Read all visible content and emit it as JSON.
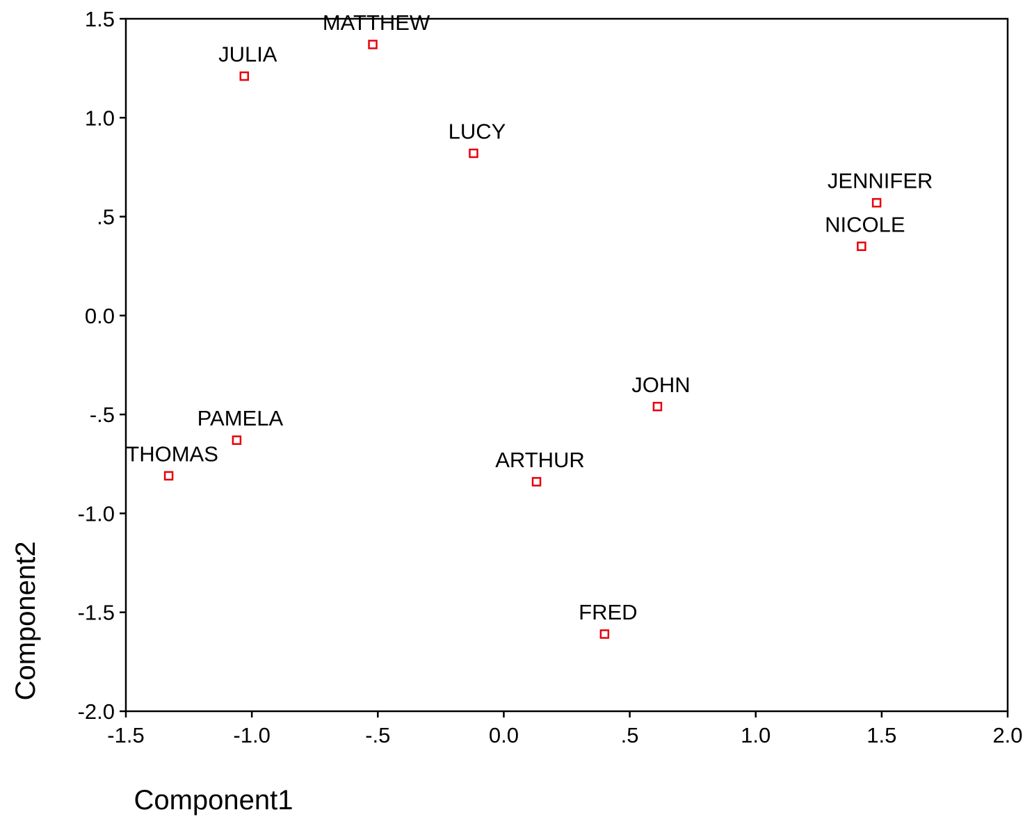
{
  "chart_data": {
    "type": "scatter",
    "title": "",
    "xlabel": "Component1",
    "ylabel": "Component2",
    "xlim": [
      -1.5,
      2.0
    ],
    "ylim": [
      -2.0,
      1.5
    ],
    "x_ticks": [
      -1.5,
      -1.0,
      -0.5,
      0.0,
      0.5,
      1.0,
      1.5,
      2.0
    ],
    "x_tick_labels": [
      "-1.5",
      "-1.0",
      "-.5",
      "0.0",
      ".5",
      "1.0",
      "1.5",
      "2.0"
    ],
    "y_ticks": [
      1.5,
      1.0,
      0.5,
      0.0,
      -0.5,
      -1.0,
      -1.5,
      -2.0
    ],
    "y_tick_labels": [
      "1.5",
      "1.0",
      ".5",
      "0.0",
      "-.5",
      "-1.0",
      "-1.5",
      "-2.0"
    ],
    "grid": false,
    "marker": "hollow-square",
    "marker_color": "#e8000b",
    "points": [
      {
        "label": "MATTHEW",
        "x": -0.52,
        "y": 1.37
      },
      {
        "label": "JULIA",
        "x": -1.03,
        "y": 1.21
      },
      {
        "label": "LUCY",
        "x": -0.12,
        "y": 0.82
      },
      {
        "label": "JENNIFER",
        "x": 1.48,
        "y": 0.57
      },
      {
        "label": "NICOLE",
        "x": 1.42,
        "y": 0.35
      },
      {
        "label": "JOHN",
        "x": 0.61,
        "y": -0.46
      },
      {
        "label": "PAMELA",
        "x": -1.06,
        "y": -0.63
      },
      {
        "label": "THOMAS",
        "x": -1.33,
        "y": -0.81
      },
      {
        "label": "ARTHUR",
        "x": 0.13,
        "y": -0.84
      },
      {
        "label": "FRED",
        "x": 0.4,
        "y": -1.61
      }
    ]
  }
}
